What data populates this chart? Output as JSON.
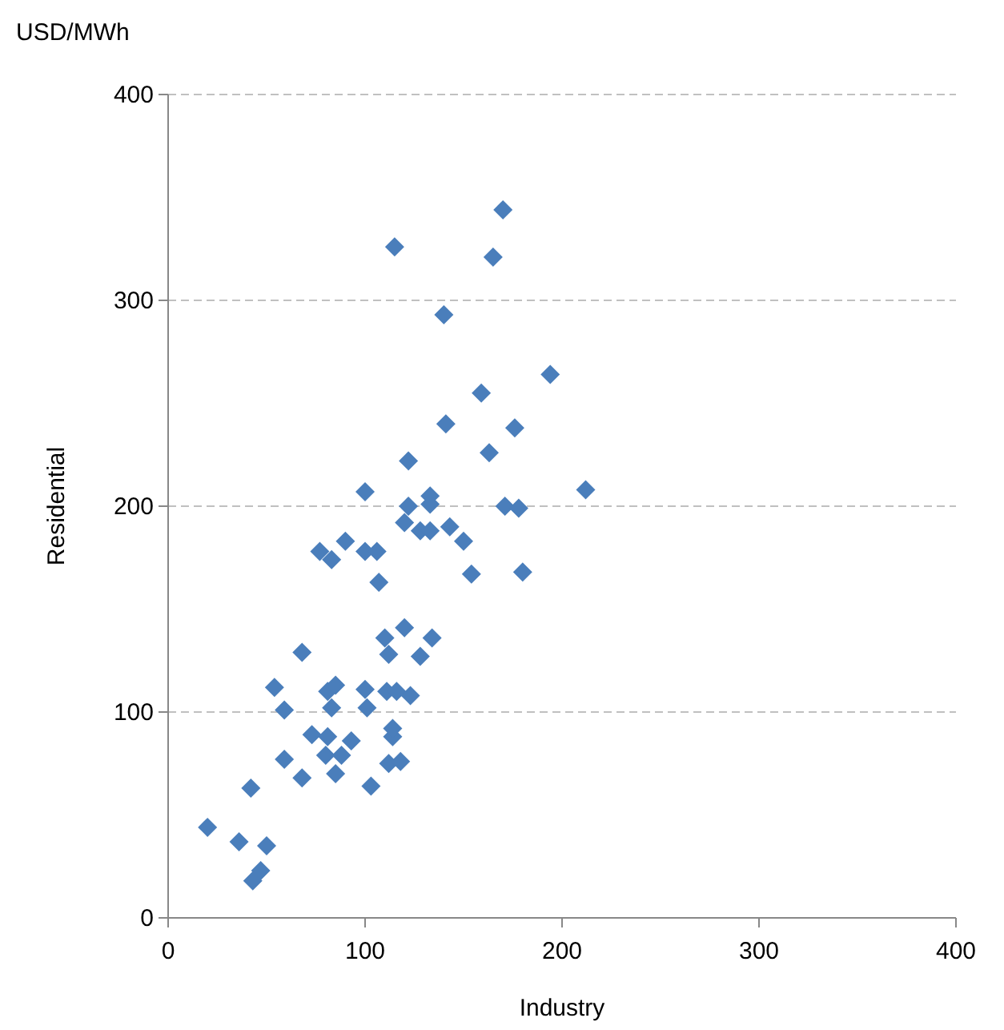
{
  "chart_data": {
    "type": "scatter",
    "xlabel": "Industry",
    "ylabel": "Residential",
    "annotations": [
      "USD/MWh"
    ],
    "xlim": [
      0,
      400
    ],
    "xticks": [
      0,
      100,
      200,
      300,
      400
    ],
    "ylim": [
      0,
      400
    ],
    "yticks": [
      0,
      100,
      200,
      300,
      400
    ],
    "grid": "y",
    "marker": "diamond",
    "series": [
      {
        "color": "#4a7ebb",
        "x": [
          20,
          36,
          50,
          47,
          43,
          42,
          59,
          68,
          54,
          59,
          68,
          73,
          81,
          80,
          85,
          88,
          93,
          81,
          85,
          83,
          77,
          83,
          90,
          100,
          100,
          106,
          107,
          100,
          101,
          103,
          110,
          112,
          111,
          116,
          114,
          114,
          112,
          118,
          115,
          120,
          120,
          123,
          122,
          122,
          128,
          128,
          133,
          133,
          133,
          134,
          140,
          141,
          143,
          150,
          154,
          159,
          163,
          165,
          170,
          171,
          176,
          178,
          180,
          194,
          212
        ],
        "values": [
          44,
          37,
          35,
          23,
          18,
          63,
          77,
          68,
          112,
          101,
          129,
          89,
          88,
          79,
          70,
          79,
          86,
          110,
          113,
          102,
          178,
          174,
          183,
          207,
          178,
          178,
          163,
          111,
          102,
          64,
          136,
          128,
          110,
          110,
          88,
          92,
          75,
          76,
          326,
          192,
          141,
          108,
          200,
          222,
          127,
          188,
          188,
          205,
          201,
          136,
          293,
          240,
          190,
          183,
          167,
          255,
          226,
          321,
          344,
          200,
          238,
          199,
          168,
          264,
          208
        ]
      }
    ]
  }
}
